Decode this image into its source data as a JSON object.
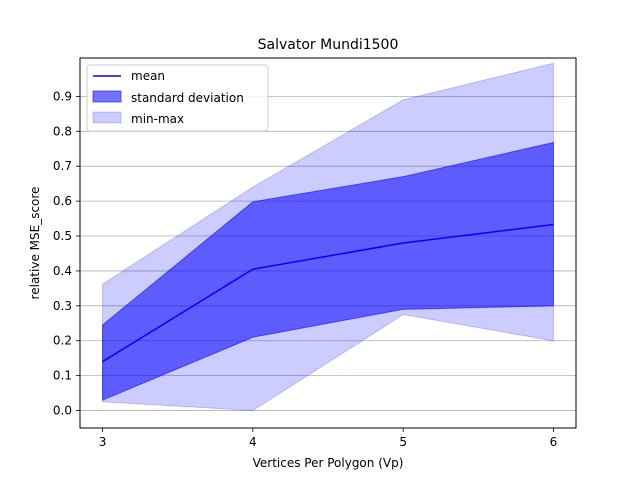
{
  "chart_data": {
    "type": "area",
    "title": "Salvator Mundi1500",
    "xlabel": "Vertices Per Polygon (Vp)",
    "ylabel": "relative MSE_score",
    "x": [
      3,
      4,
      5,
      6
    ],
    "xlim": [
      2.85,
      6.15
    ],
    "ylim": [
      -0.05,
      1.01
    ],
    "xticks": [
      "3",
      "4",
      "5",
      "6"
    ],
    "yticks": [
      "0.0",
      "0.1",
      "0.2",
      "0.3",
      "0.4",
      "0.5",
      "0.6",
      "0.7",
      "0.8",
      "0.9"
    ],
    "ytick_values": [
      0.0,
      0.1,
      0.2,
      0.3,
      0.4,
      0.5,
      0.6,
      0.7,
      0.8,
      0.9
    ],
    "grid": "y",
    "legend_position": "top-left",
    "series": [
      {
        "name": "mean",
        "kind": "line",
        "color": "#0000ff",
        "values": [
          0.14,
          0.405,
          0.48,
          0.533
        ]
      },
      {
        "name": "standard deviation",
        "kind": "band",
        "color": "#0000ff",
        "opacity": 0.55,
        "lower": [
          0.03,
          0.21,
          0.29,
          0.3
        ],
        "upper": [
          0.245,
          0.598,
          0.67,
          0.768
        ]
      },
      {
        "name": "min-max",
        "kind": "band",
        "color": "#0000ff",
        "opacity": 0.2,
        "lower": [
          0.025,
          0.0,
          0.275,
          0.2
        ],
        "upper": [
          0.362,
          0.64,
          0.89,
          0.995
        ]
      }
    ]
  }
}
